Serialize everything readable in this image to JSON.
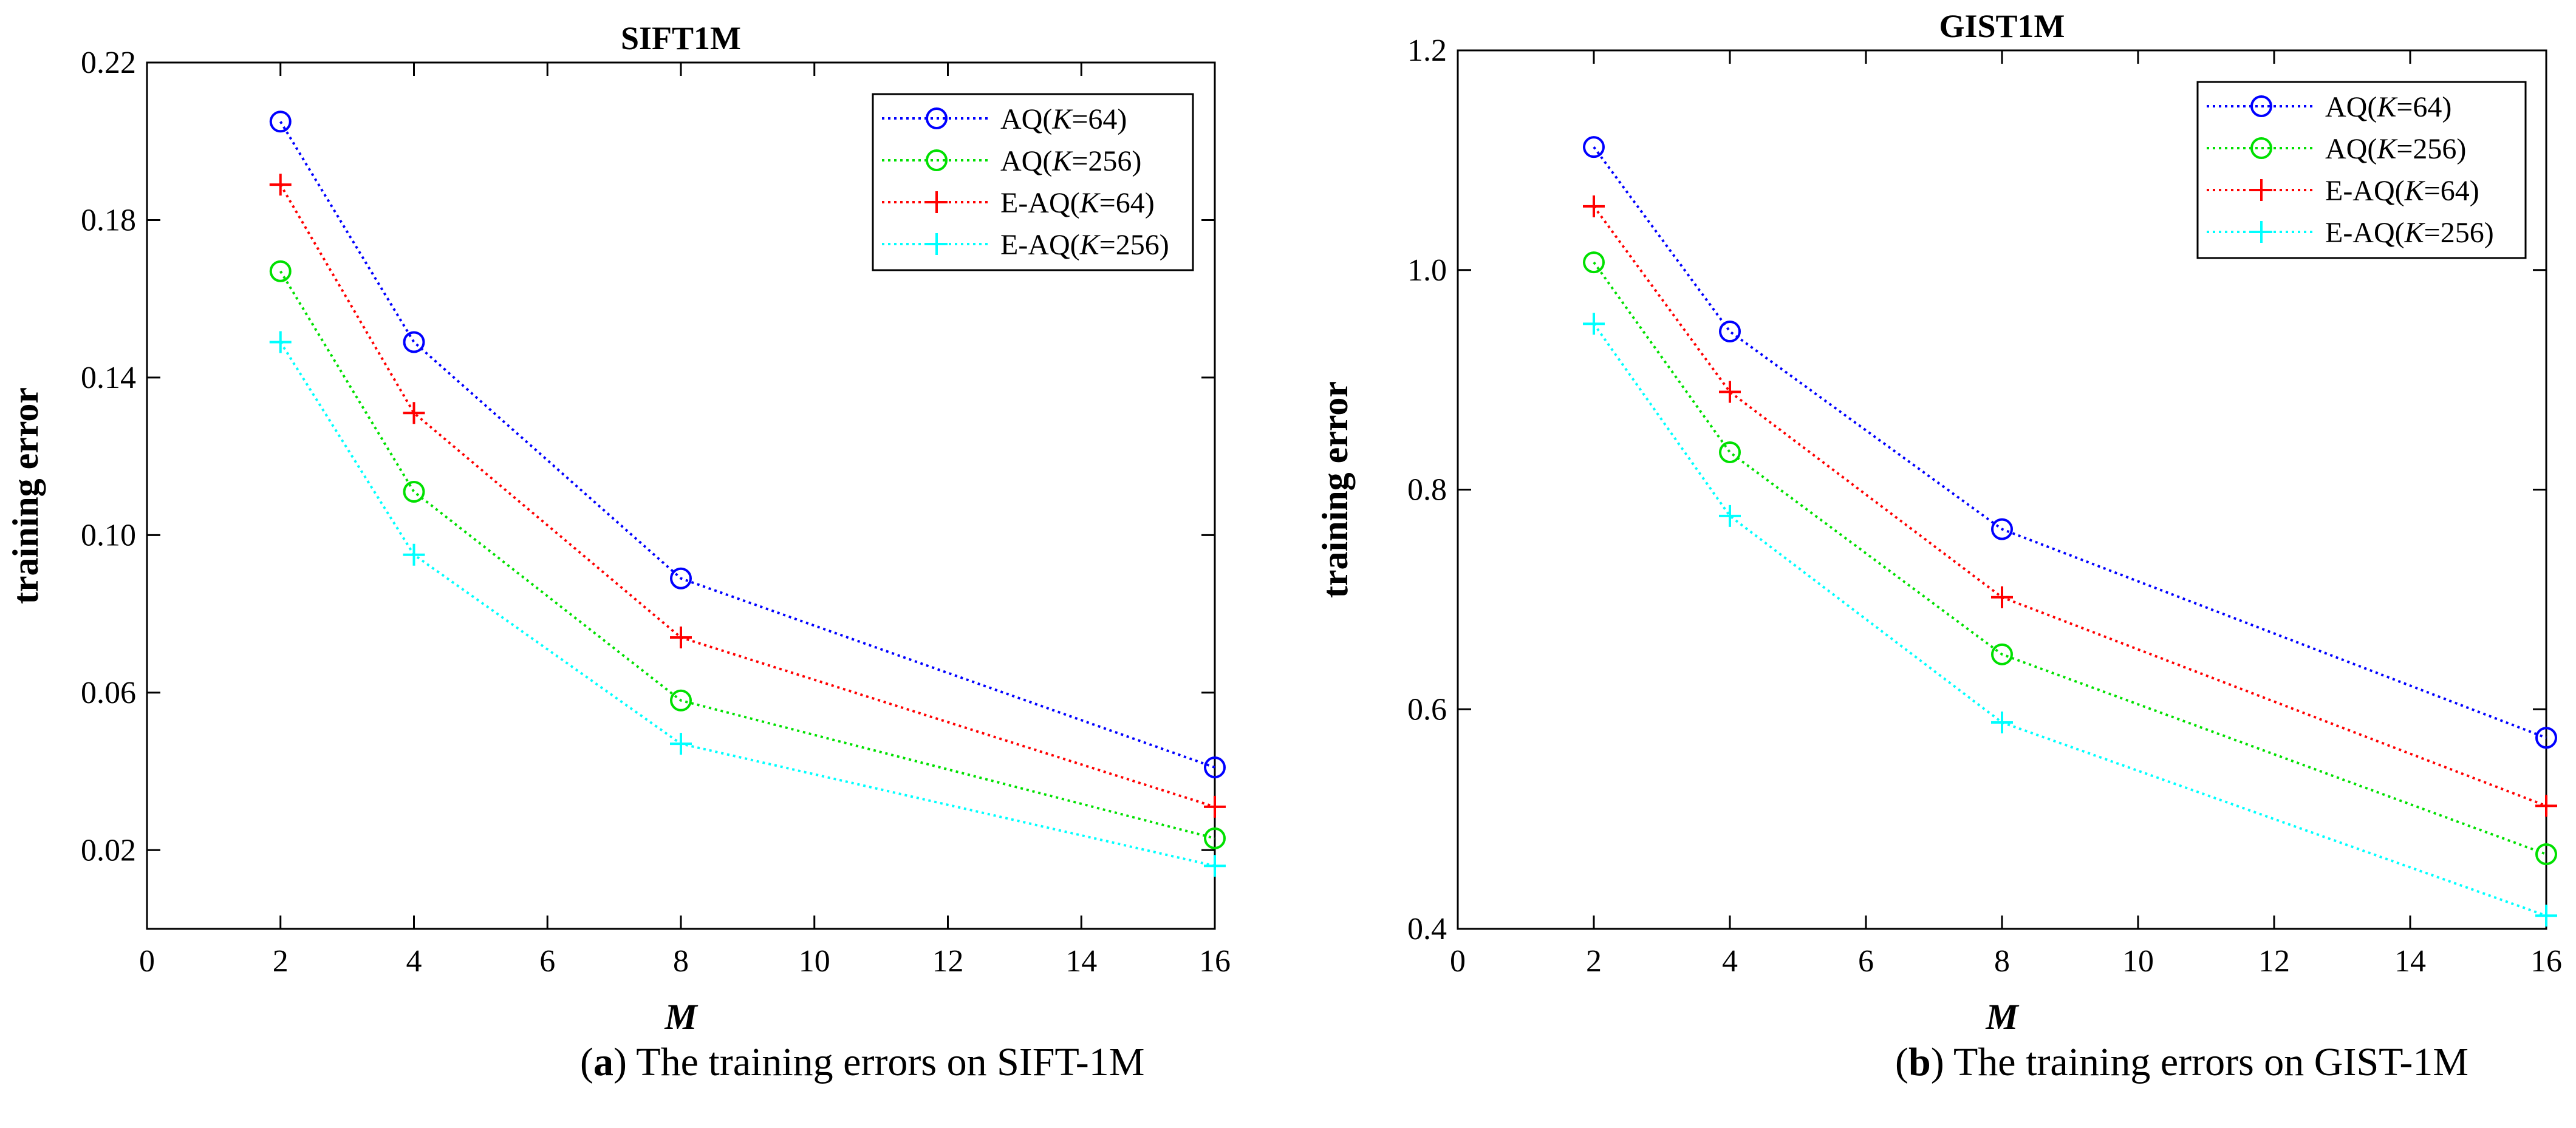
{
  "chart_data": [
    {
      "type": "line",
      "title": "SIFT1M",
      "xlabel": "M",
      "ylabel": "training error",
      "xlim": [
        0,
        16
      ],
      "ylim": [
        0.0,
        0.22
      ],
      "xticks": [
        0,
        2,
        4,
        6,
        8,
        10,
        12,
        14,
        16
      ],
      "yticks": [
        0.02,
        0.06,
        0.1,
        0.14,
        0.18,
        0.22
      ],
      "ytick_labels": [
        "0.02",
        "0.06",
        "0.10",
        "0.14",
        "0.18",
        "0.22"
      ],
      "grid": false,
      "legend_position": "top-right",
      "x": [
        2,
        4,
        8,
        16
      ],
      "series": [
        {
          "name": "AQ(K=64)",
          "name_prefix": "AQ(",
          "name_var": "K",
          "name_suffix": "=64)",
          "color": "#0000ff",
          "marker": "circle",
          "values": [
            0.205,
            0.149,
            0.089,
            0.041
          ]
        },
        {
          "name": "AQ(K=256)",
          "name_prefix": "AQ(",
          "name_var": "K",
          "name_suffix": "=256)",
          "color": "#00e000",
          "marker": "circle",
          "values": [
            0.167,
            0.111,
            0.058,
            0.023
          ]
        },
        {
          "name": "E-AQ(K=64)",
          "name_prefix": "E-AQ(",
          "name_var": "K",
          "name_suffix": "=64)",
          "color": "#ff0000",
          "marker": "plus",
          "values": [
            0.189,
            0.131,
            0.074,
            0.031
          ]
        },
        {
          "name": "E-AQ(K=256)",
          "name_prefix": "E-AQ(",
          "name_var": "K",
          "name_suffix": "=256)",
          "color": "#00ffff",
          "marker": "plus",
          "values": [
            0.149,
            0.095,
            0.047,
            0.016
          ]
        }
      ]
    },
    {
      "type": "line",
      "title": "GIST1M",
      "xlabel": "M",
      "ylabel": "training error",
      "xlim": [
        0,
        16
      ],
      "ylim": [
        0.4,
        1.2
      ],
      "xticks": [
        0,
        2,
        4,
        6,
        8,
        10,
        12,
        14,
        16
      ],
      "yticks": [
        0.4,
        0.6,
        0.8,
        1.0,
        1.2
      ],
      "ytick_labels": [
        "0.4",
        "0.6",
        "0.8",
        "1.0",
        "1.2"
      ],
      "grid": false,
      "legend_position": "top-right",
      "x": [
        2,
        4,
        8,
        16
      ],
      "series": [
        {
          "name": "AQ(K=64)",
          "name_prefix": "AQ(",
          "name_var": "K",
          "name_suffix": "=64)",
          "color": "#0000ff",
          "marker": "circle",
          "values": [
            1.112,
            0.944,
            0.764,
            0.574
          ]
        },
        {
          "name": "AQ(K=256)",
          "name_prefix": "AQ(",
          "name_var": "K",
          "name_suffix": "=256)",
          "color": "#00e000",
          "marker": "circle",
          "values": [
            1.007,
            0.834,
            0.65,
            0.468
          ]
        },
        {
          "name": "E-AQ(K=64)",
          "name_prefix": "E-AQ(",
          "name_var": "K",
          "name_suffix": "=64)",
          "color": "#ff0000",
          "marker": "plus",
          "values": [
            1.058,
            0.889,
            0.702,
            0.512
          ]
        },
        {
          "name": "E-AQ(K=256)",
          "name_prefix": "E-AQ(",
          "name_var": "K",
          "name_suffix": "=256)",
          "color": "#00ffff",
          "marker": "plus",
          "values": [
            0.951,
            0.776,
            0.588,
            0.412
          ]
        }
      ]
    }
  ],
  "captions": [
    {
      "letter": "a",
      "text": " The training errors on SIFT-1M"
    },
    {
      "letter": "b",
      "text": " The training errors on GIST-1M"
    }
  ]
}
